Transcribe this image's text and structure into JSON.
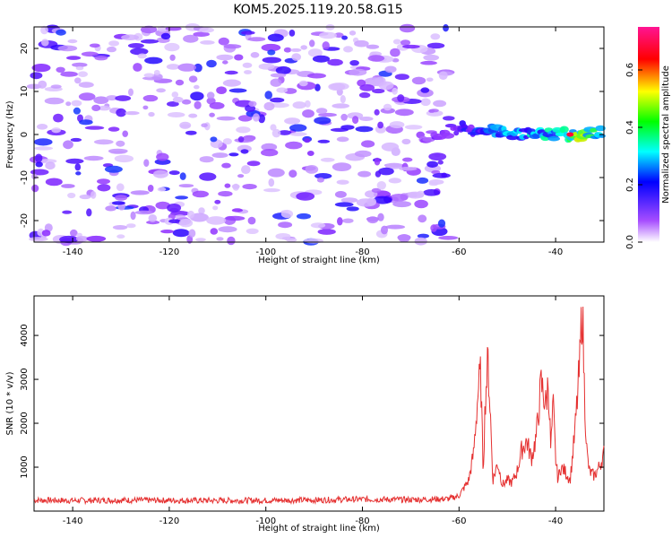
{
  "title": "KOM5.2025.119.20.58.G15",
  "chart_data": [
    {
      "type": "heatmap",
      "xlabel": "Height of straight line (km)",
      "ylabel": "Frequency (Hz)",
      "xlim": [
        -148,
        -30
      ],
      "ylim": [
        -25,
        25
      ],
      "x_ticks": [
        -140,
        -120,
        -100,
        -80,
        -60,
        -40
      ],
      "y_ticks": [
        -20,
        -10,
        0,
        10,
        20
      ],
      "colorbar": {
        "label": "Normalized spectral amplitude",
        "range": [
          0.0,
          0.75
        ],
        "ticks": [
          0.0,
          0.2,
          0.4,
          0.6
        ],
        "colors": [
          "#ffffff",
          "#9b30ff",
          "#0000ff",
          "#00ffff",
          "#00ff00",
          "#ffff00",
          "#ff0000",
          "#ff1493"
        ]
      },
      "features": {
        "noise_region_x": [
          -148,
          -60
        ],
        "signal_band": {
          "x": [
            -68,
            -60,
            -55,
            -50,
            -45,
            -40,
            -35,
            -30
          ],
          "center_freq": [
            -1,
            1.5,
            1,
            0.5,
            0,
            0,
            0,
            0.5
          ],
          "amplitude": [
            0.15,
            0.25,
            0.3,
            0.38,
            0.42,
            0.45,
            0.6,
            0.45
          ]
        },
        "peak": {
          "x": -37,
          "y": 0,
          "amplitude": 0.72
        }
      }
    },
    {
      "type": "line",
      "xlabel": "Height of straight line (km)",
      "ylabel": "SNR (10 * v/v)",
      "xlim": [
        -148,
        -30
      ],
      "ylim": [
        0,
        4900
      ],
      "x_ticks": [
        -140,
        -120,
        -100,
        -80,
        -60,
        -40
      ],
      "y_ticks": [
        1000,
        2000,
        3000,
        4000
      ],
      "series": [
        {
          "color": "#e53030",
          "x": [
            -148,
            -140,
            -130,
            -120,
            -110,
            -100,
            -90,
            -80,
            -70,
            -62,
            -60,
            -58,
            -57,
            -56,
            -55.5,
            -55,
            -54.5,
            -54,
            -53.5,
            -53,
            -52,
            -51,
            -50,
            -49,
            -48,
            -47,
            -46,
            -45,
            -44,
            -43,
            -42,
            -41.5,
            -41,
            -40.5,
            -40,
            -39.5,
            -39,
            -38,
            -37,
            -36,
            -35,
            -34.5,
            -34,
            -33.5,
            -33,
            -32,
            -31,
            -30
          ],
          "y": [
            250,
            240,
            250,
            245,
            240,
            245,
            250,
            270,
            260,
            280,
            350,
            700,
            1300,
            2800,
            3100,
            900,
            2700,
            3400,
            2200,
            700,
            1100,
            600,
            700,
            650,
            900,
            1400,
            1600,
            1200,
            1700,
            2900,
            2400,
            3000,
            1400,
            2400,
            1200,
            700,
            1000,
            900,
            700,
            1800,
            3300,
            4800,
            2600,
            1300,
            900,
            800,
            1000,
            1300
          ]
        }
      ]
    }
  ]
}
